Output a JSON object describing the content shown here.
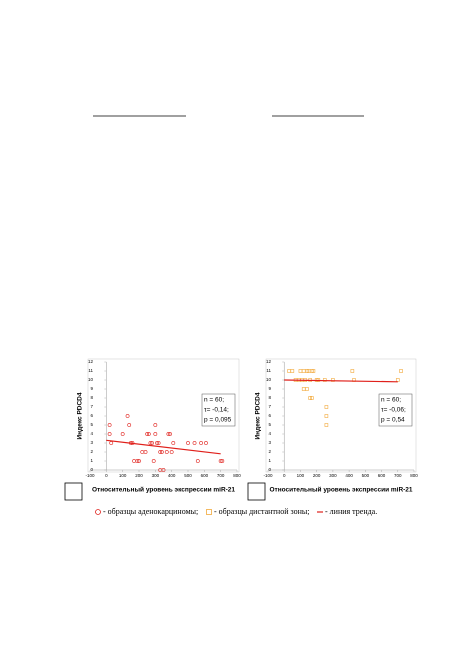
{
  "chart_data": [
    {
      "type": "scatter",
      "xlabel": "Относительный уровень экспрессии miR-21",
      "ylabel": "Индекс PDCD4",
      "xlim": [
        -100,
        800
      ],
      "ylim": [
        0,
        12
      ],
      "xticks": [
        -100,
        0,
        100,
        200,
        300,
        400,
        500,
        600,
        700,
        800
      ],
      "yticks": [
        0,
        1,
        2,
        3,
        4,
        5,
        6,
        7,
        8,
        9,
        10,
        11,
        12
      ],
      "annotation": [
        "n = 60;",
        "τ= -0,14;",
        "p = 0,095"
      ],
      "series": [
        {
          "color": "#e0201b",
          "marker": "circle",
          "x": [
            20,
            20,
            30,
            100,
            130,
            140,
            150,
            160,
            170,
            190,
            200,
            220,
            240,
            250,
            260,
            270,
            280,
            290,
            300,
            300,
            310,
            320,
            330,
            340,
            350,
            370,
            380,
            390,
            400,
            410,
            540,
            560,
            580,
            610,
            700,
            710,
            330,
            500
          ],
          "values": [
            5,
            4,
            3,
            4,
            6,
            5,
            3,
            3,
            1,
            1,
            1,
            2,
            2,
            4,
            4,
            3,
            3,
            1,
            5,
            4,
            3,
            3,
            2,
            2,
            0,
            2,
            4,
            4,
            2,
            3,
            3,
            1,
            3,
            3,
            1,
            1,
            0,
            3
          ]
        }
      ],
      "trend": {
        "color": "#e0201b",
        "x": [
          0,
          700
        ],
        "values": [
          3.3,
          1.8
        ]
      }
    },
    {
      "type": "scatter",
      "xlabel": "Относительный уровень экспрессии miR-21",
      "ylabel": "Индекс PDCD4",
      "xlim": [
        -100,
        800
      ],
      "ylim": [
        0,
        12
      ],
      "xticks": [
        -100,
        0,
        100,
        200,
        300,
        400,
        500,
        600,
        700,
        800
      ],
      "yticks": [
        0,
        1,
        2,
        3,
        4,
        5,
        6,
        7,
        8,
        9,
        10,
        11,
        12
      ],
      "annotation": [
        "n = 60;",
        "τ= -0,06;",
        "p = 0,54"
      ],
      "series": [
        {
          "color": "#f2a93b",
          "marker": "square",
          "x": [
            30,
            50,
            70,
            100,
            110,
            120,
            130,
            140,
            150,
            160,
            170,
            180,
            200,
            210,
            250,
            260,
            260,
            260,
            120,
            140,
            160,
            170,
            300,
            420,
            430,
            720,
            700,
            90
          ],
          "values": [
            11,
            11,
            10,
            11,
            10,
            11,
            10,
            11,
            11,
            10,
            11,
            11,
            10,
            10,
            10,
            7,
            6,
            5,
            9,
            9,
            8,
            8,
            10,
            11,
            10,
            11,
            10,
            10
          ]
        }
      ],
      "trend": {
        "color": "#e0201b",
        "x": [
          0,
          700
        ],
        "values": [
          10,
          9.8
        ]
      }
    }
  ],
  "legend": {
    "items": [
      "- образцы аденокарциномы;",
      "- образцы дистантной зоны;",
      "- линия тренда."
    ],
    "colors": [
      "#e0201b",
      "#f2a93b",
      "#e0201b"
    ]
  }
}
